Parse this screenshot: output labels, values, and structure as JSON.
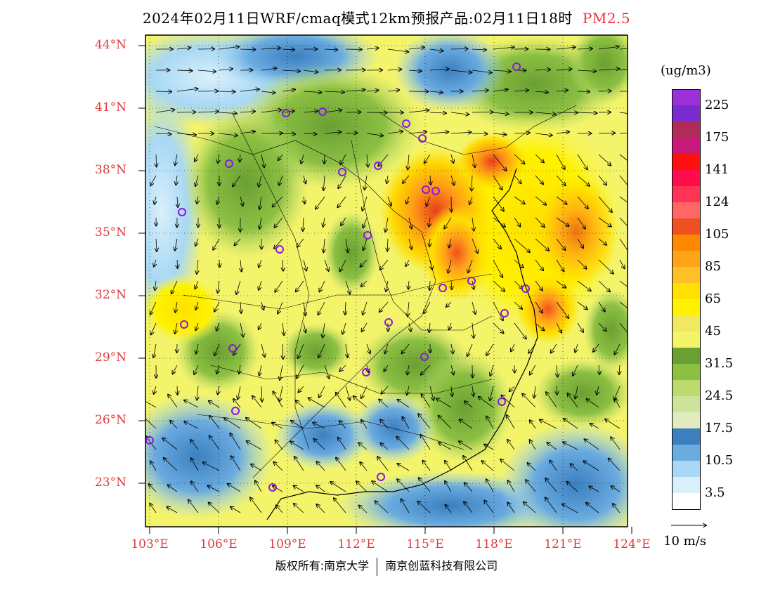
{
  "title": {
    "main": "2024年02月11日WRF/cmaq模式12km预报产品:02月11日18时",
    "pollutant": "PM2.5"
  },
  "latitude_labels": [
    "44°N",
    "41°N",
    "38°N",
    "35°N",
    "32°N",
    "29°N",
    "26°N",
    "23°N"
  ],
  "longitude_labels": [
    "103°E",
    "106°E",
    "109°E",
    "112°E",
    "115°E",
    "118°E",
    "121°E",
    "124°E"
  ],
  "legend": {
    "unit": "(ug/m3)",
    "levels": [
      {
        "label": "225",
        "color": "#9b30d8"
      },
      {
        "label": "",
        "color": "#7a2bcf"
      },
      {
        "label": "175",
        "color": "#b02a5a"
      },
      {
        "label": "",
        "color": "#c81878"
      },
      {
        "label": "141",
        "color": "#ff1010"
      },
      {
        "label": "",
        "color": "#ff0c4c"
      },
      {
        "label": "124",
        "color": "#ff3355"
      },
      {
        "label": "",
        "color": "#ff6666"
      },
      {
        "label": "105",
        "color": "#f0501e"
      },
      {
        "label": "",
        "color": "#ff8800"
      },
      {
        "label": "85",
        "color": "#ffa31a"
      },
      {
        "label": "",
        "color": "#ffbf26"
      },
      {
        "label": "65",
        "color": "#ffe000"
      },
      {
        "label": "",
        "color": "#fff200"
      },
      {
        "label": "45",
        "color": "#f0e860"
      },
      {
        "label": "",
        "color": "#f4f46a"
      },
      {
        "label": "31.5",
        "color": "#6aa033"
      },
      {
        "label": "",
        "color": "#8cc043"
      },
      {
        "label": "24.5",
        "color": "#bcdb6e"
      },
      {
        "label": "",
        "color": "#cde39a"
      },
      {
        "label": "17.5",
        "color": "#e2ebc0"
      },
      {
        "label": "",
        "color": "#3b7fbf"
      },
      {
        "label": "10.5",
        "color": "#6aabe0"
      },
      {
        "label": "",
        "color": "#a8d8f4"
      },
      {
        "label": "3.5",
        "color": "#d9f0fb"
      },
      {
        "label": "",
        "color": "#ffffff"
      }
    ]
  },
  "wind_reference": {
    "label": "10 m/s"
  },
  "footer": {
    "left": "版权所有:南京大学",
    "right": "南京创蓝科技有限公司"
  }
}
